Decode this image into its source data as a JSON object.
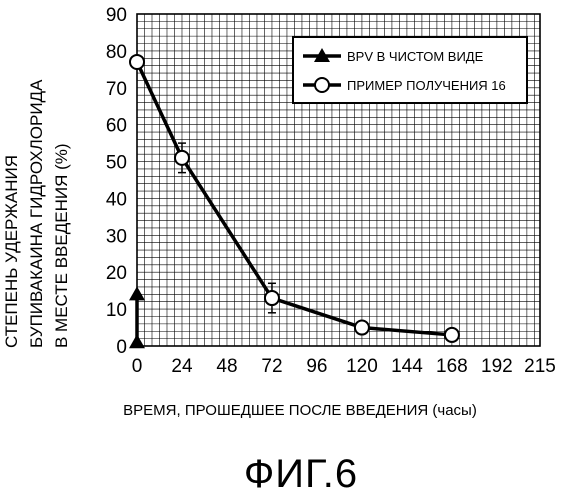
{
  "chart_data": {
    "type": "line",
    "title": "",
    "xlabel": "ВРЕМЯ, ПРОШЕДШЕЕ ПОСЛЕ ВВЕДЕНИЯ (часы)",
    "ylabel": [
      "СТЕПЕНЬ УДЕРЖАНИЯ",
      "БУПИВАКАИНА ГИДРОХЛОРИДА",
      "В МЕСТЕ ВВЕДЕНИЯ (%)"
    ],
    "xlim": [
      0,
      215
    ],
    "ylim": [
      0,
      90
    ],
    "x_ticks": [
      "0",
      "24",
      "48",
      "72",
      "96",
      "120",
      "144",
      "168",
      "192",
      "215"
    ],
    "y_ticks": [
      "0",
      "10",
      "20",
      "30",
      "40",
      "50",
      "60",
      "70",
      "80",
      "90"
    ],
    "grid": true,
    "legend_position": "top-right",
    "series": [
      {
        "name": "BPV В ЧИСТОМ ВИДЕ",
        "marker": "triangle",
        "x": [
          0,
          0
        ],
        "y": [
          14,
          1
        ],
        "error": [
          0,
          0
        ]
      },
      {
        "name": "ПРИМЕР ПОЛУЧЕНИЯ 16",
        "marker": "circle",
        "x": [
          0,
          24,
          72,
          120,
          168
        ],
        "y": [
          77,
          51,
          13,
          5,
          3
        ],
        "error": [
          1,
          4,
          4,
          1,
          1
        ]
      }
    ]
  },
  "figure_label": "ФИГ.6"
}
